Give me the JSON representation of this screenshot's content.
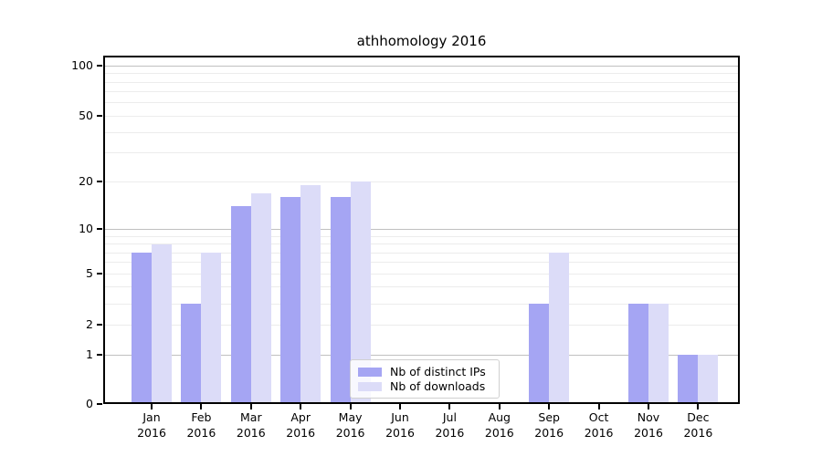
{
  "title": "athhomology 2016",
  "colors": {
    "bar_ips": "#a5a5f3",
    "bar_downloads": "#dcdcf8",
    "grid_major": "#c0c0c0",
    "grid_minor": "#ececec",
    "spine": "#000000",
    "legend_border": "#d0d0d0"
  },
  "y_axis": {
    "ticks": [
      0,
      1,
      2,
      5,
      10,
      20,
      50,
      100
    ],
    "scale_note": "log10(value+1)"
  },
  "legend": {
    "items": [
      {
        "label": "Nb of distinct IPs",
        "series": "ips"
      },
      {
        "label": "Nb of downloads",
        "series": "downloads"
      }
    ]
  },
  "chart_data": {
    "type": "bar",
    "title": "athhomology 2016",
    "categories": [
      "Jan 2016",
      "Feb 2016",
      "Mar 2016",
      "Apr 2016",
      "May 2016",
      "Jun 2016",
      "Jul 2016",
      "Aug 2016",
      "Sep 2016",
      "Oct 2016",
      "Nov 2016",
      "Dec 2016"
    ],
    "series": [
      {
        "name": "Nb of distinct IPs",
        "values": [
          7,
          3,
          14,
          16,
          16,
          0,
          0,
          0,
          3,
          0,
          3,
          1
        ]
      },
      {
        "name": "Nb of downloads",
        "values": [
          8,
          7,
          17,
          19,
          20,
          0,
          0,
          0,
          7,
          0,
          3,
          1
        ]
      }
    ],
    "xlabel": "",
    "ylabel": "",
    "yscale": "log10(value+1)",
    "y_ticks": [
      0,
      1,
      2,
      5,
      10,
      20,
      50,
      100
    ],
    "ylim": [
      0,
      115
    ],
    "grid": true,
    "legend_position": "inside lower center"
  }
}
